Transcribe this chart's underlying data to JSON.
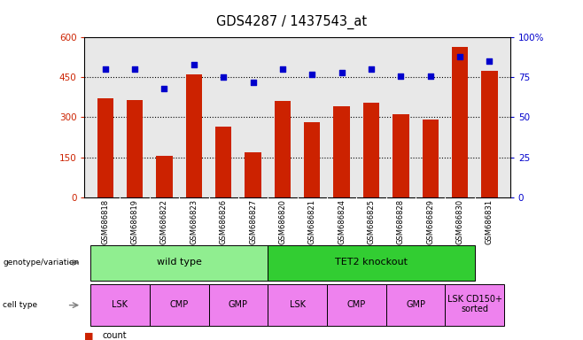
{
  "title": "GDS4287 / 1437543_at",
  "samples": [
    "GSM686818",
    "GSM686819",
    "GSM686822",
    "GSM686823",
    "GSM686826",
    "GSM686827",
    "GSM686820",
    "GSM686821",
    "GSM686824",
    "GSM686825",
    "GSM686828",
    "GSM686829",
    "GSM686830",
    "GSM686831"
  ],
  "counts": [
    370,
    365,
    155,
    460,
    265,
    168,
    360,
    280,
    340,
    355,
    310,
    290,
    565,
    475
  ],
  "percentiles": [
    80,
    80,
    68,
    83,
    75,
    72,
    80,
    77,
    78,
    80,
    76,
    76,
    88,
    85
  ],
  "bar_color": "#cc2200",
  "dot_color": "#0000cc",
  "ylim_left": [
    0,
    600
  ],
  "ylim_right": [
    0,
    100
  ],
  "yticks_left": [
    0,
    150,
    300,
    450,
    600
  ],
  "yticks_right": [
    0,
    25,
    50,
    75,
    100
  ],
  "ytick_labels_left": [
    "0",
    "150",
    "300",
    "450",
    "600"
  ],
  "ytick_labels_right": [
    "0",
    "25",
    "50",
    "75",
    "100%"
  ],
  "grid_values": [
    150,
    300,
    450
  ],
  "genotype_groups": [
    {
      "label": "wild type",
      "start": 0,
      "end": 6,
      "color": "#90ee90"
    },
    {
      "label": "TET2 knockout",
      "start": 6,
      "end": 13,
      "color": "#32cd32"
    }
  ],
  "cell_type_groups": [
    {
      "label": "LSK",
      "start": 0,
      "end": 2,
      "color": "#ee82ee"
    },
    {
      "label": "CMP",
      "start": 2,
      "end": 4,
      "color": "#ee82ee"
    },
    {
      "label": "GMP",
      "start": 4,
      "end": 6,
      "color": "#ee82ee"
    },
    {
      "label": "LSK",
      "start": 6,
      "end": 8,
      "color": "#ee82ee"
    },
    {
      "label": "CMP",
      "start": 8,
      "end": 10,
      "color": "#ee82ee"
    },
    {
      "label": "GMP",
      "start": 10,
      "end": 12,
      "color": "#ee82ee"
    },
    {
      "label": "LSK CD150+\nsorted",
      "start": 12,
      "end": 14,
      "color": "#ee82ee"
    }
  ],
  "bar_width": 0.55,
  "background_color": "#ffffff",
  "tick_bg_color": "#d3d3d3"
}
